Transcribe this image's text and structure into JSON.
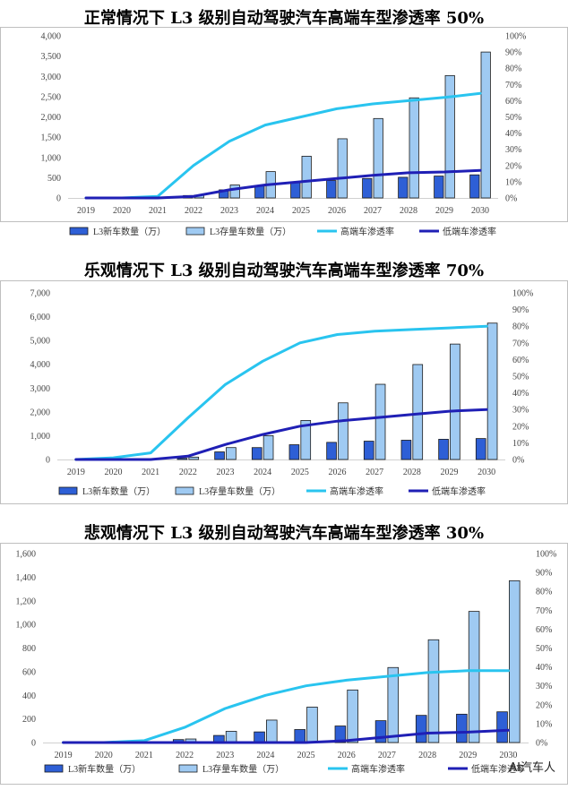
{
  "watermark": "AI汽车人",
  "chart_data": [
    {
      "type": "bar",
      "title": "正常情况下 L3 级别自动驾驶汽车高端车型渗透率 50%",
      "categories": [
        "2019",
        "2020",
        "2021",
        "2022",
        "2023",
        "2024",
        "2025",
        "2026",
        "2027",
        "2028",
        "2029",
        "2030"
      ],
      "ylim": [
        0,
        4000
      ],
      "yticks": [
        "0",
        "500",
        "1,000",
        "1,500",
        "2,000",
        "2,500",
        "3,000",
        "3,500",
        "4,000"
      ],
      "y2lim": [
        0,
        1
      ],
      "y2ticks": [
        "0%",
        "10%",
        "20%",
        "30%",
        "40%",
        "50%",
        "60%",
        "70%",
        "80%",
        "90%",
        "100%"
      ],
      "series": [
        {
          "name": "L3新车数量（万）",
          "kind": "bar",
          "color": "#2e5fd6",
          "values": [
            0,
            0,
            0,
            60,
            200,
            310,
            390,
            430,
            480,
            510,
            540,
            570
          ]
        },
        {
          "name": "L3存量车数量（万）",
          "kind": "bar",
          "color": "#9fcaf2",
          "values": [
            0,
            0,
            0,
            70,
            320,
            650,
            1030,
            1460,
            1960,
            2470,
            3020,
            3600
          ]
        },
        {
          "name": "高端车渗透率",
          "kind": "line",
          "axis": "right",
          "color": "#29c4ef",
          "values": [
            0,
            0,
            0.01,
            0.2,
            0.35,
            0.45,
            0.5,
            0.55,
            0.58,
            0.6,
            0.62,
            0.645
          ]
        },
        {
          "name": "低端车渗透率",
          "kind": "line",
          "axis": "right",
          "color": "#1f1fb5",
          "values": [
            0,
            0,
            0,
            0.01,
            0.05,
            0.08,
            0.1,
            0.12,
            0.14,
            0.155,
            0.16,
            0.17
          ]
        }
      ]
    },
    {
      "type": "bar",
      "title": "乐观情况下 L3 级别自动驾驶汽车高端车型渗透率 70%",
      "categories": [
        "2019",
        "2020",
        "2021",
        "2022",
        "2023",
        "2024",
        "2025",
        "2026",
        "2027",
        "2028",
        "2029",
        "2030"
      ],
      "ylim": [
        0,
        7000
      ],
      "yticks": [
        "0",
        "1,000",
        "2,000",
        "3,000",
        "4,000",
        "5,000",
        "6,000",
        "7,000"
      ],
      "y2lim": [
        0,
        1
      ],
      "y2ticks": [
        "0%",
        "10%",
        "20%",
        "30%",
        "40%",
        "50%",
        "60%",
        "70%",
        "80%",
        "90%",
        "100%"
      ],
      "series": [
        {
          "name": "L3新车数量（万）",
          "kind": "bar",
          "color": "#2e5fd6",
          "values": [
            0,
            0,
            0,
            50,
            320,
            500,
            620,
            720,
            770,
            810,
            850,
            880
          ]
        },
        {
          "name": "L3存量车数量（万）",
          "kind": "bar",
          "color": "#9fcaf2",
          "values": [
            0,
            0,
            0,
            100,
            500,
            1000,
            1640,
            2380,
            3160,
            3990,
            4850,
            5730
          ]
        },
        {
          "name": "高端车渗透率",
          "kind": "line",
          "axis": "right",
          "color": "#29c4ef",
          "values": [
            0,
            0.01,
            0.04,
            0.25,
            0.45,
            0.59,
            0.7,
            0.75,
            0.77,
            0.78,
            0.79,
            0.8
          ]
        },
        {
          "name": "低端车渗透率",
          "kind": "line",
          "axis": "right",
          "color": "#1f1fb5",
          "values": [
            0,
            0,
            0,
            0.02,
            0.09,
            0.15,
            0.2,
            0.23,
            0.25,
            0.27,
            0.29,
            0.3
          ]
        }
      ]
    },
    {
      "type": "bar",
      "title": "悲观情况下 L3 级别自动驾驶汽车高端车型渗透率 30%",
      "categories": [
        "2019",
        "2020",
        "2021",
        "2022",
        "2023",
        "2024",
        "2025",
        "2026",
        "2027",
        "2028",
        "2029",
        "2030"
      ],
      "ylim": [
        0,
        1600
      ],
      "yticks": [
        "0",
        "200",
        "400",
        "600",
        "800",
        "1,000",
        "1,200",
        "1,400",
        "1,600"
      ],
      "y2lim": [
        0,
        1
      ],
      "y2ticks": [
        "0%",
        "10%",
        "20%",
        "30%",
        "40%",
        "50%",
        "60%",
        "70%",
        "80%",
        "90%",
        "100%"
      ],
      "series": [
        {
          "name": "L3新车数量（万）",
          "kind": "bar",
          "color": "#2e5fd6",
          "values": [
            0,
            0,
            0,
            25,
            60,
            90,
            110,
            140,
            185,
            230,
            240,
            260
          ]
        },
        {
          "name": "L3存量车数量（万）",
          "kind": "bar",
          "color": "#9fcaf2",
          "values": [
            0,
            0,
            0,
            30,
            95,
            190,
            300,
            445,
            635,
            870,
            1110,
            1370
          ]
        },
        {
          "name": "高端车渗透率",
          "kind": "line",
          "axis": "right",
          "color": "#29c4ef",
          "values": [
            0,
            0,
            0.01,
            0.08,
            0.18,
            0.25,
            0.3,
            0.33,
            0.35,
            0.37,
            0.38,
            0.38
          ]
        },
        {
          "name": "低端车渗透率",
          "kind": "line",
          "axis": "right",
          "color": "#1f1fb5",
          "values": [
            0,
            0,
            0,
            0,
            0,
            0,
            0,
            0.01,
            0.03,
            0.05,
            0.055,
            0.065
          ]
        }
      ]
    }
  ]
}
